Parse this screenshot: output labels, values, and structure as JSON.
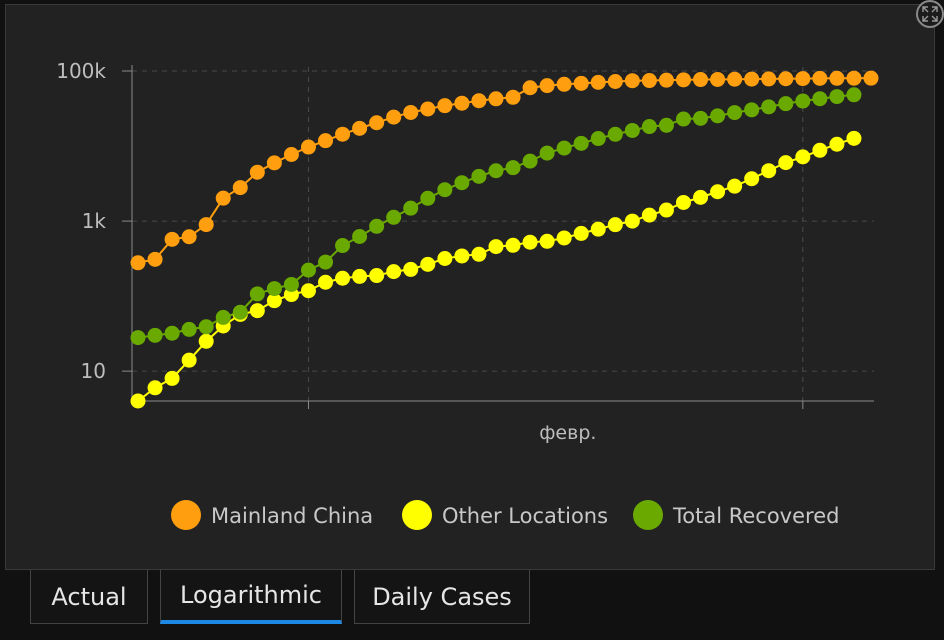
{
  "chart_data": {
    "type": "scatter",
    "y_scale": "log",
    "title": "",
    "xlabel": "",
    "ylabel": "",
    "ylim": [
      4,
      100000
    ],
    "y_ticks": [
      {
        "value": 10,
        "label": "10"
      },
      {
        "value": 1000,
        "label": "1k"
      },
      {
        "value": 100000,
        "label": "100k"
      }
    ],
    "x_ticks": [
      {
        "value": 10,
        "label": ""
      },
      {
        "value": 39,
        "label": "февр."
      }
    ],
    "grid": true,
    "legend_position": "bottom",
    "series": [
      {
        "name": "Mainland China",
        "color": "#ff9f0f",
        "values": [
          278,
          309,
          571,
          618,
          898,
          2019,
          2794,
          4473,
          5974,
          7711,
          9692,
          11791,
          14380,
          17205,
          20438,
          24324,
          28018,
          31161,
          34546,
          37198,
          40171,
          42638,
          44653,
          59804,
          63851,
          66492,
          68500,
          70548,
          72436,
          74185,
          74576,
          75465,
          76288,
          76936,
          77150,
          77658,
          78064,
          78497,
          78824,
          79251,
          79824,
          80026,
          80151,
          80270
        ]
      },
      {
        "name": "Other Locations",
        "color": "#ffff00",
        "values": [
          4,
          6,
          8,
          14,
          25,
          40,
          57,
          64,
          87,
          105,
          118,
          153,
          173,
          183,
          188,
          212,
          227,
          265,
          317,
          343,
          361,
          457,
          476,
          523,
          538,
          595,
          685,
          780,
          896,
          999,
          1200,
          1402,
          1769,
          2069,
          2459,
          2918,
          3664,
          4691,
          6009,
          7169,
          8774,
          10566,
          12668
        ]
      },
      {
        "name": "Total Recovered",
        "color": "#6aaa00",
        "values": [
          28,
          30,
          32,
          36,
          39,
          52,
          61,
          107,
          126,
          143,
          222,
          284,
          472,
          623,
          852,
          1124,
          1487,
          2011,
          2616,
          3244,
          3946,
          4683,
          5150,
          6295,
          8058,
          9395,
          10865,
          12583,
          14352,
          16121,
          18177,
          18890,
          22886,
          23394,
          25227,
          27905,
          30384,
          33277,
          36711,
          39782,
          42716,
          45602,
          48228
        ]
      }
    ]
  }
}
